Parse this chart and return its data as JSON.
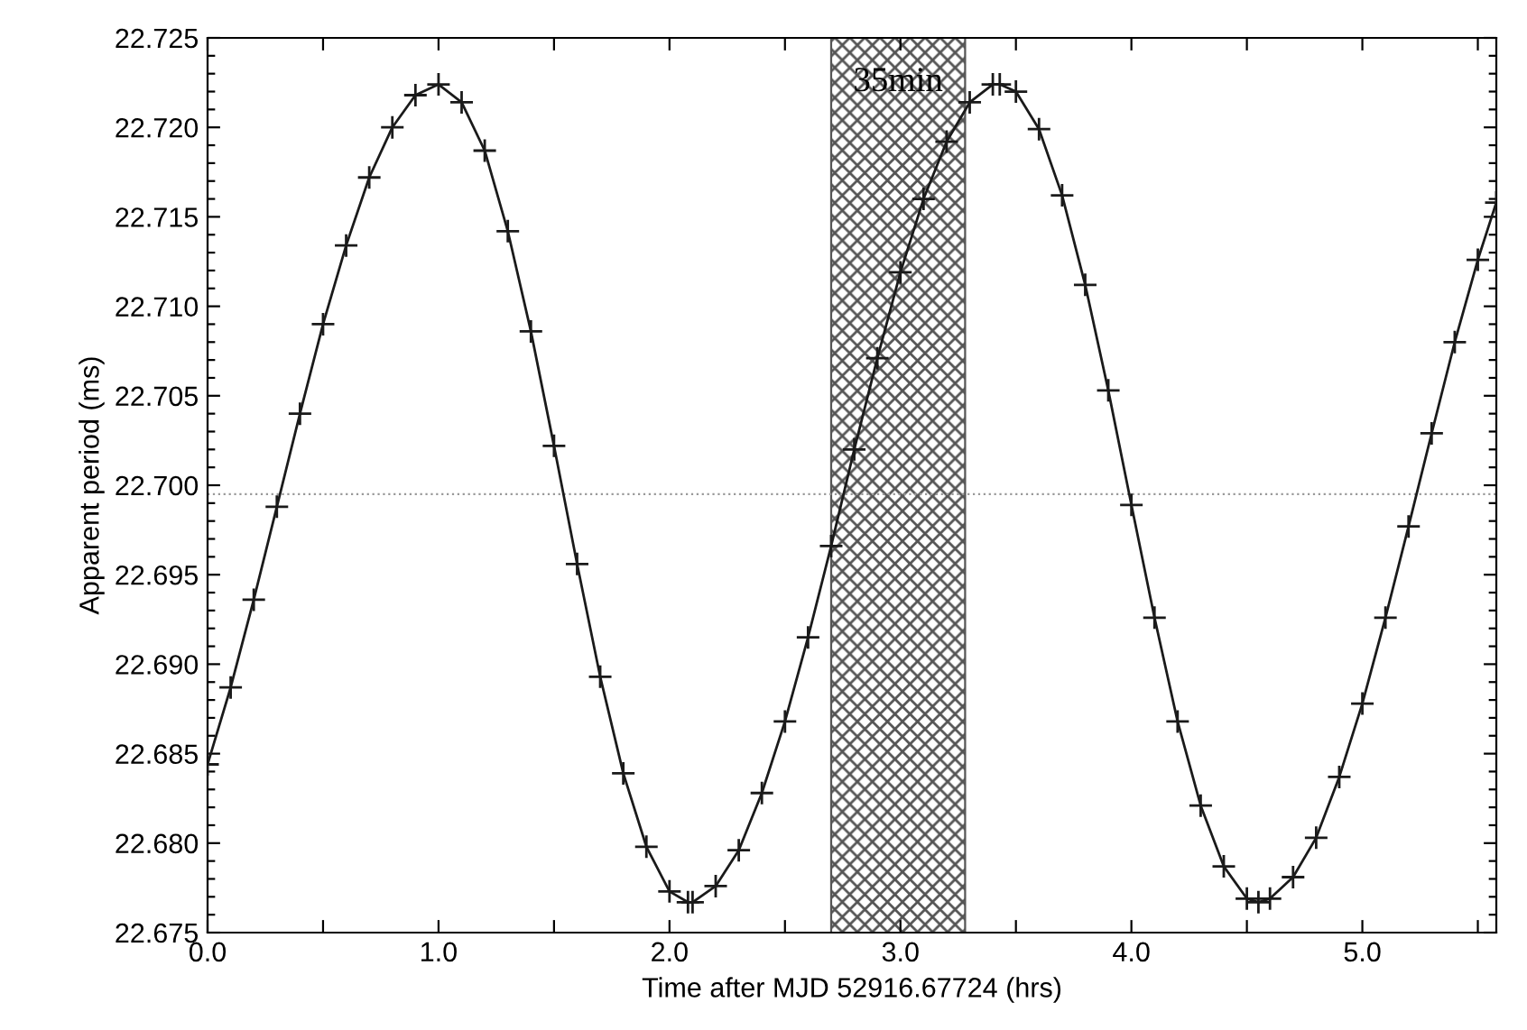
{
  "chart_data": {
    "type": "line",
    "xlabel": "Time after MJD 52916.67724 (hrs)",
    "ylabel": "Apparent period (ms)",
    "xlim": [
      0,
      5.58
    ],
    "ylim": [
      22.675,
      22.725
    ],
    "xticks": [
      {
        "value": 0,
        "label": "0.0"
      },
      {
        "value": 0.5,
        "label": null
      },
      {
        "value": 1,
        "label": "1.0"
      },
      {
        "value": 1.5,
        "label": null
      },
      {
        "value": 2,
        "label": "2.0"
      },
      {
        "value": 2.5,
        "label": null
      },
      {
        "value": 3,
        "label": "3.0"
      },
      {
        "value": 3.5,
        "label": null
      },
      {
        "value": 4,
        "label": "4.0"
      },
      {
        "value": 4.5,
        "label": null
      },
      {
        "value": 5,
        "label": "5.0"
      },
      {
        "value": 5.5,
        "label": null
      }
    ],
    "yticks": [
      22.675,
      {
        "value": 22.676,
        "label": null
      },
      {
        "value": 22.677,
        "label": null
      },
      {
        "value": 22.678,
        "label": null
      },
      {
        "value": 22.679,
        "label": null
      },
      {
        "value": 22.68,
        "label": "22.680"
      },
      {
        "value": 22.681,
        "label": null
      },
      {
        "value": 22.682,
        "label": null
      },
      {
        "value": 22.683,
        "label": null
      },
      {
        "value": 22.684,
        "label": null
      },
      22.685,
      {
        "value": 22.686,
        "label": null
      },
      {
        "value": 22.687,
        "label": null
      },
      {
        "value": 22.688,
        "label": null
      },
      {
        "value": 22.689,
        "label": null
      },
      {
        "value": 22.69,
        "label": "22.690"
      },
      {
        "value": 22.691,
        "label": null
      },
      {
        "value": 22.692,
        "label": null
      },
      {
        "value": 22.693,
        "label": null
      },
      {
        "value": 22.694,
        "label": null
      },
      22.695,
      {
        "value": 22.696,
        "label": null
      },
      {
        "value": 22.697,
        "label": null
      },
      {
        "value": 22.698,
        "label": null
      },
      {
        "value": 22.699,
        "label": null
      },
      {
        "value": 22.7,
        "label": "22.700"
      },
      {
        "value": 22.701,
        "label": null
      },
      {
        "value": 22.702,
        "label": null
      },
      {
        "value": 22.703,
        "label": null
      },
      {
        "value": 22.704,
        "label": null
      },
      22.705,
      {
        "value": 22.706,
        "label": null
      },
      {
        "value": 22.707,
        "label": null
      },
      {
        "value": 22.708,
        "label": null
      },
      {
        "value": 22.709,
        "label": null
      },
      {
        "value": 22.71,
        "label": "22.710"
      },
      {
        "value": 22.711,
        "label": null
      },
      {
        "value": 22.712,
        "label": null
      },
      {
        "value": 22.713,
        "label": null
      },
      {
        "value": 22.714,
        "label": null
      },
      22.715,
      {
        "value": 22.716,
        "label": null
      },
      {
        "value": 22.717,
        "label": null
      },
      {
        "value": 22.718,
        "label": null
      },
      {
        "value": 22.719,
        "label": null
      },
      {
        "value": 22.72,
        "label": "22.720"
      },
      {
        "value": 22.721,
        "label": null
      },
      {
        "value": 22.722,
        "label": null
      },
      {
        "value": 22.723,
        "label": null
      },
      {
        "value": 22.724,
        "label": null
      },
      22.725
    ],
    "grid": false,
    "legend": false,
    "marker": "cross",
    "line_style": "solid",
    "series": [
      {
        "color": "#1a1a1a",
        "x": [
          0,
          0.1,
          0.2,
          0.3,
          0.4,
          0.5,
          0.6,
          0.7,
          0.8,
          0.9,
          1.0,
          1.1,
          1.2,
          1.3,
          1.4,
          1.5,
          1.6,
          1.7,
          1.8,
          1.9,
          2.0,
          2.08,
          2.1,
          2.2,
          2.3,
          2.4,
          2.5,
          2.6,
          2.7,
          2.8,
          2.9,
          3.0,
          3.1,
          3.2,
          3.3,
          3.4,
          3.43,
          3.5,
          3.6,
          3.7,
          3.8,
          3.9,
          4.0,
          4.1,
          4.2,
          4.3,
          4.4,
          4.5,
          4.55,
          4.6,
          4.7,
          4.8,
          4.9,
          5.0,
          5.1,
          5.2,
          5.3,
          5.4,
          5.5,
          5.58
        ],
        "values": [
          22.6844,
          22.6887,
          22.6936,
          22.6988,
          22.704,
          22.709,
          22.7134,
          22.7172,
          22.72,
          22.7218,
          22.7224,
          22.7214,
          22.7187,
          22.7142,
          22.7086,
          22.7022,
          22.6956,
          22.6893,
          22.6839,
          22.6798,
          22.6773,
          22.6767,
          22.6767,
          22.6776,
          22.6796,
          22.6828,
          22.6868,
          22.6915,
          22.6966,
          22.702,
          22.7071,
          22.7119,
          22.716,
          22.7192,
          22.7214,
          22.7224,
          22.7224,
          22.722,
          22.7199,
          22.7162,
          22.7112,
          22.7053,
          22.6989,
          22.6926,
          22.6868,
          22.6821,
          22.6787,
          22.6769,
          22.6767,
          22.6769,
          22.6781,
          22.6803,
          22.6837,
          22.6878,
          22.6926,
          22.6977,
          22.7029,
          22.708,
          22.7126,
          22.7158
        ]
      }
    ],
    "ref_lines": [
      {
        "axis": "y",
        "value": 22.6995,
        "color": "#999999",
        "line_style": "dotted"
      }
    ],
    "bands": [
      {
        "axis": "x",
        "from": 2.7,
        "to": 3.28,
        "label": "35min",
        "color": "#555555"
      }
    ]
  }
}
